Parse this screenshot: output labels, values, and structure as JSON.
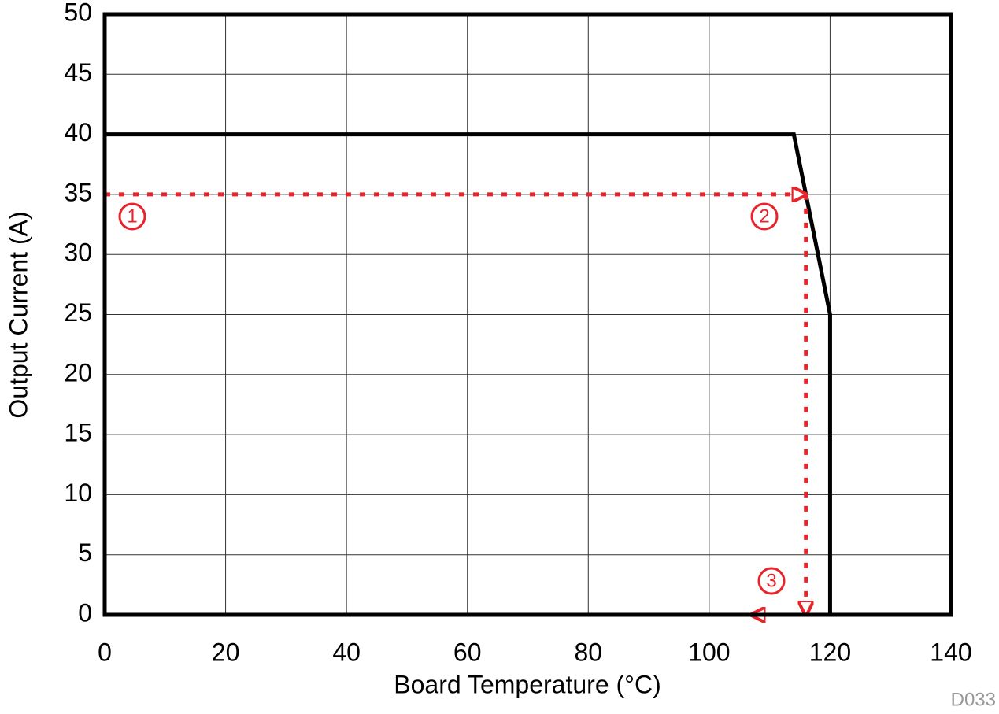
{
  "chart_data": {
    "type": "line",
    "xlabel": "Board Temperature (°C)",
    "ylabel": "Output Current (A)",
    "x": [
      0,
      114,
      116,
      120,
      120
    ],
    "values": [
      40,
      40,
      35,
      25,
      0
    ],
    "color": "#000000",
    "xlim": [
      0,
      140
    ],
    "xticks": [
      0,
      20,
      40,
      60,
      80,
      100,
      120,
      140
    ],
    "ylim": [
      0,
      50
    ],
    "yticks": [
      0,
      5,
      10,
      15,
      20,
      25,
      30,
      35,
      40,
      45,
      50
    ],
    "grid": true,
    "guide": {
      "color": "#e8232a",
      "x": [
        0,
        116,
        116,
        107
      ],
      "values": [
        35,
        35,
        0,
        0
      ]
    },
    "annotations": [
      "1",
      "2",
      "3"
    ],
    "figure_id": "D033"
  }
}
